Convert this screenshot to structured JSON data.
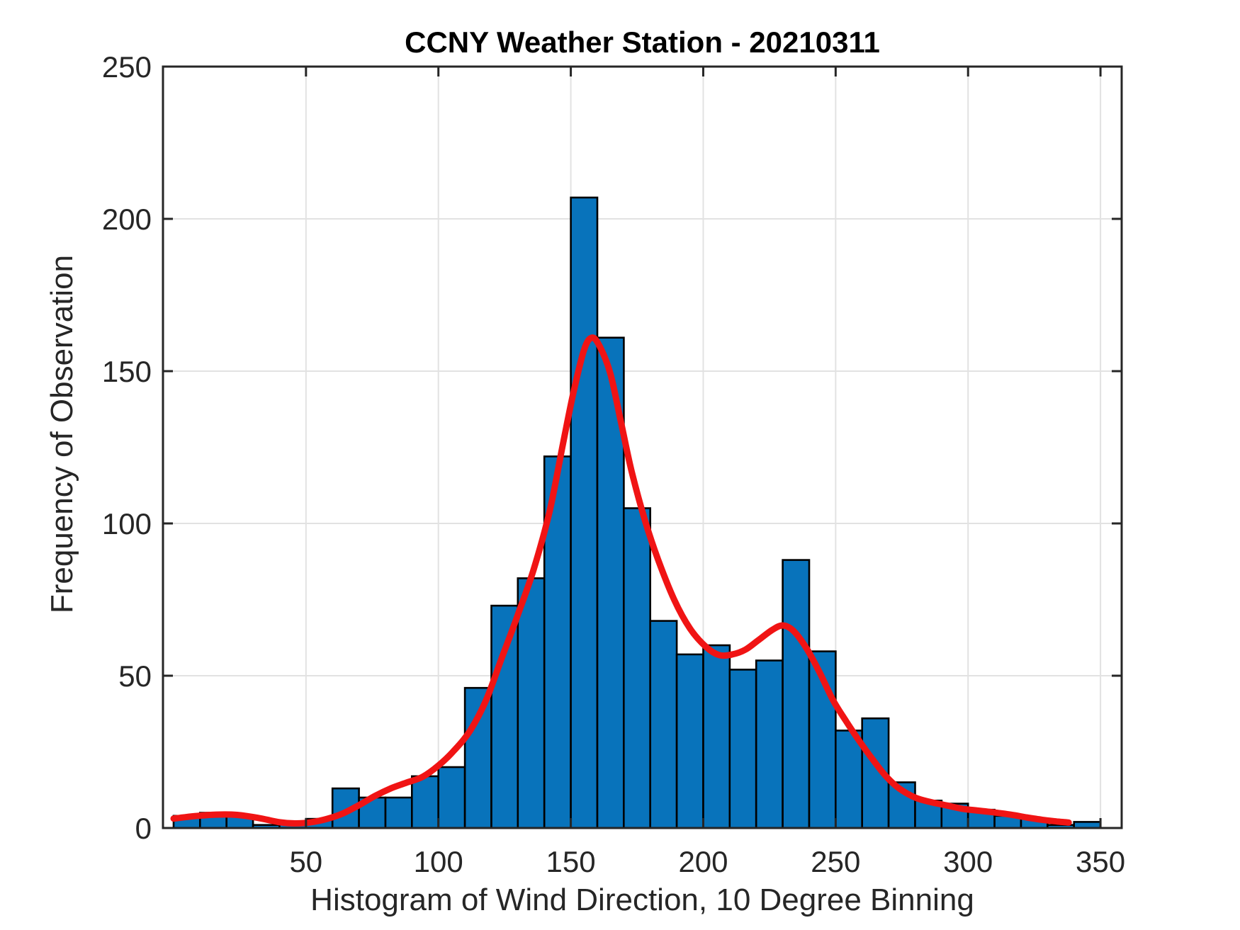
{
  "chart_data": {
    "type": "bar",
    "subtype": "histogram-with-fit-curve",
    "title": "CCNY Weather Station - 20210311",
    "xlabel": "Histogram of Wind Direction, 10 Degree Binning",
    "ylabel": "Frequency of Observation",
    "bin_width_degrees": 10,
    "bin_edges": [
      0,
      10,
      20,
      30,
      40,
      50,
      60,
      70,
      80,
      90,
      100,
      110,
      120,
      130,
      140,
      150,
      160,
      170,
      180,
      190,
      200,
      210,
      220,
      230,
      240,
      250,
      260,
      270,
      280,
      290,
      300,
      310,
      320,
      330,
      340,
      350
    ],
    "counts": [
      4,
      5,
      4,
      1,
      2,
      3,
      13,
      10,
      10,
      17,
      20,
      46,
      73,
      82,
      122,
      207,
      161,
      105,
      68,
      57,
      60,
      52,
      55,
      88,
      58,
      32,
      36,
      15,
      9,
      8,
      6,
      4,
      3,
      1,
      2
    ],
    "xticks": [
      50,
      100,
      150,
      200,
      250,
      300,
      350
    ],
    "yticks": [
      0,
      50,
      100,
      150,
      200,
      250
    ],
    "xlim": [
      -4,
      358
    ],
    "ylim": [
      0,
      250
    ],
    "grid": true,
    "legend_position": "none",
    "fit_curve_points": [
      [
        0,
        3.1
      ],
      [
        8,
        3.9
      ],
      [
        16,
        4.4
      ],
      [
        24,
        4.3
      ],
      [
        32,
        3.3
      ],
      [
        40,
        1.9
      ],
      [
        46,
        1.5
      ],
      [
        52,
        1.9
      ],
      [
        58,
        3.0
      ],
      [
        64,
        4.8
      ],
      [
        70,
        7.5
      ],
      [
        76,
        10.5
      ],
      [
        82,
        13.0
      ],
      [
        88,
        14.9
      ],
      [
        94,
        16.8
      ],
      [
        100,
        20.5
      ],
      [
        106,
        25.5
      ],
      [
        112,
        32
      ],
      [
        118,
        42
      ],
      [
        124,
        56
      ],
      [
        130,
        70
      ],
      [
        136,
        85
      ],
      [
        142,
        104
      ],
      [
        147,
        126
      ],
      [
        151,
        143
      ],
      [
        155,
        157
      ],
      [
        158,
        161
      ],
      [
        161,
        158
      ],
      [
        165,
        149
      ],
      [
        169,
        133
      ],
      [
        173,
        117
      ],
      [
        178,
        101
      ],
      [
        183,
        88
      ],
      [
        189,
        75
      ],
      [
        195,
        65.5
      ],
      [
        201,
        59.5
      ],
      [
        206,
        56.8
      ],
      [
        211,
        57
      ],
      [
        216,
        58.6
      ],
      [
        221,
        61.8
      ],
      [
        226,
        65
      ],
      [
        230,
        66.5
      ],
      [
        234,
        64.8
      ],
      [
        239,
        59
      ],
      [
        244,
        51
      ],
      [
        249,
        42
      ],
      [
        254,
        35
      ],
      [
        259,
        28.5
      ],
      [
        264,
        22.5
      ],
      [
        269,
        17
      ],
      [
        274,
        13
      ],
      [
        280,
        10
      ],
      [
        286,
        8.5
      ],
      [
        292,
        7.4
      ],
      [
        298,
        6.3
      ],
      [
        304,
        5.7
      ],
      [
        310,
        5.1
      ],
      [
        316,
        4.4
      ],
      [
        322,
        3.5
      ],
      [
        328,
        2.7
      ],
      [
        334,
        2.1
      ],
      [
        338,
        1.8
      ]
    ],
    "colors": {
      "bar_fill": "#0873BB",
      "bar_edge": "#000000",
      "fit_curve": "#F01414",
      "grid": "#E2E2E2",
      "axis": "#262626",
      "tick_text": "#262626",
      "title_text": "#000000"
    }
  }
}
